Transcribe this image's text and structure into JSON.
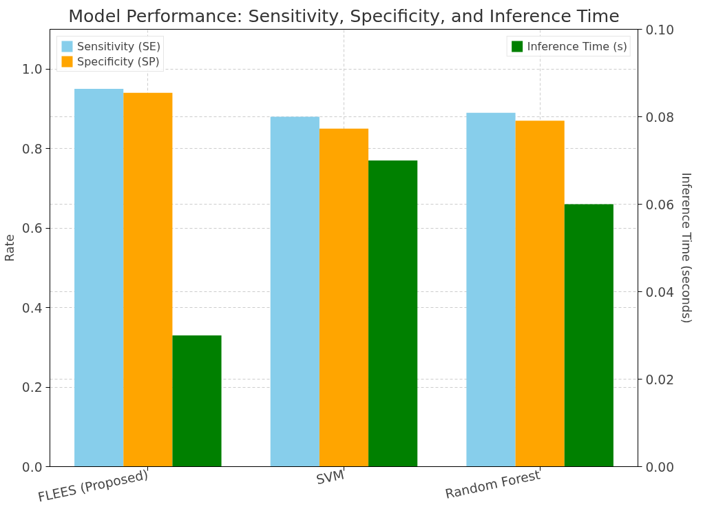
{
  "chart_data": {
    "type": "bar",
    "title": "Model Performance: Sensitivity, Specificity, and Inference Time",
    "ylabel": "Rate",
    "y2label": "Inference Time (seconds)",
    "categories": [
      "FLEES (Proposed)",
      "SVM",
      "Random Forest"
    ],
    "series": [
      {
        "name": "Sensitivity (SE)",
        "color": "#87ceeb",
        "values": [
          0.95,
          0.88,
          0.89
        ]
      },
      {
        "name": "Specificity (SP)",
        "color": "#ffa500",
        "values": [
          0.94,
          0.85,
          0.87
        ]
      },
      {
        "name": "Inference Time (s)",
        "color": "#008000",
        "values": [
          0.03,
          0.07,
          0.06
        ],
        "axis": "y2"
      }
    ],
    "ylim": [
      0,
      1.1
    ],
    "yticks": [
      {
        "value": 0,
        "label": "0.0"
      },
      {
        "value": 0.2,
        "label": "0.2"
      },
      {
        "value": 0.4,
        "label": "0.4"
      },
      {
        "value": 0.6,
        "label": "0.6"
      },
      {
        "value": 0.8,
        "label": "0.8"
      },
      {
        "value": 1.0,
        "label": "1.0"
      }
    ],
    "y2lim": [
      0,
      0.1
    ],
    "y2ticks": [
      {
        "value": 0,
        "label": "0.00"
      },
      {
        "value": 0.02,
        "label": "0.02"
      },
      {
        "value": 0.04,
        "label": "0.04"
      },
      {
        "value": 0.06,
        "label": "0.06"
      },
      {
        "value": 0.08,
        "label": "0.08"
      },
      {
        "value": 0.1,
        "label": "0.10"
      }
    ],
    "grid": true,
    "legend": "top"
  }
}
